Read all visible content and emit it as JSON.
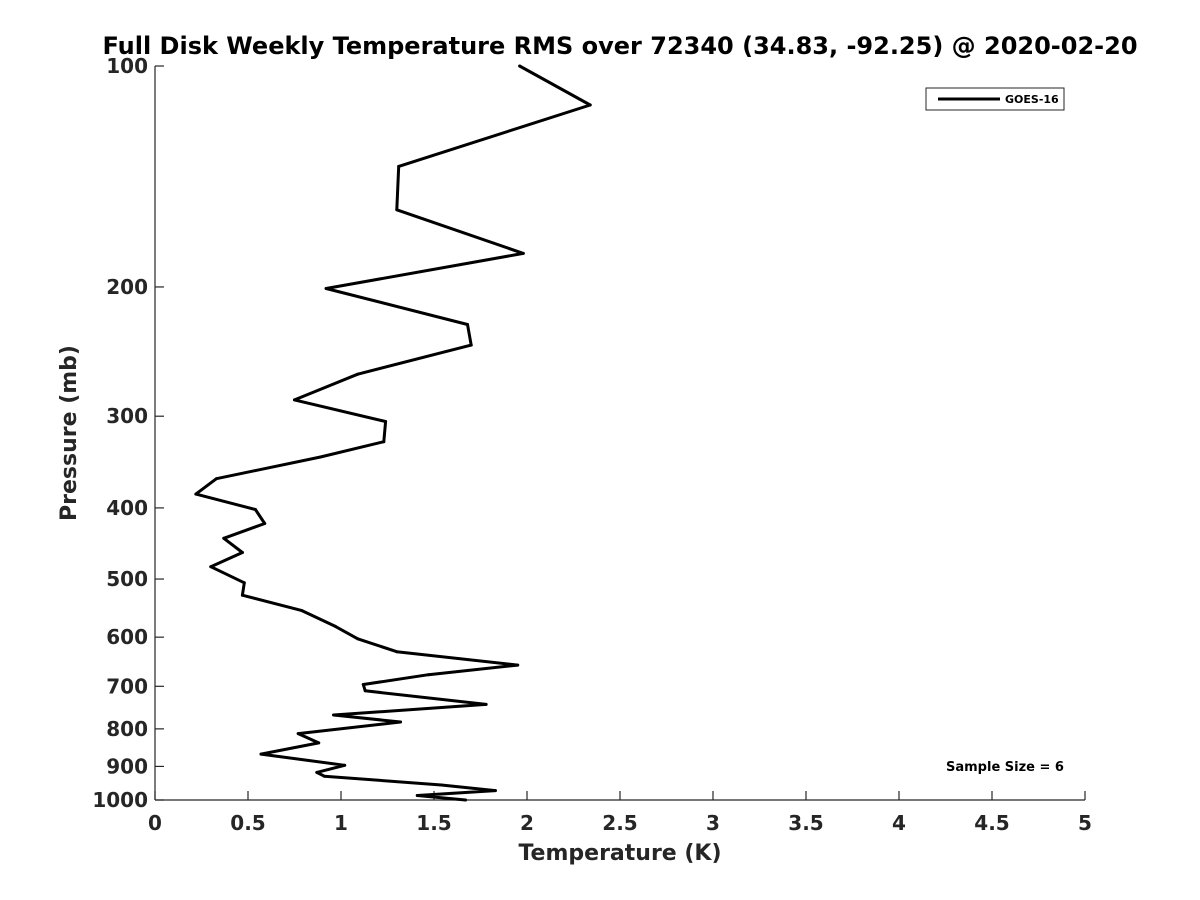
{
  "chart_data": {
    "type": "line",
    "title": "Full Disk Weekly Temperature RMS over 72340 (34.83, -92.25) @ 2020-02-20",
    "xlabel": "Temperature (K)",
    "ylabel": "Pressure (mb)",
    "xlim": [
      0,
      5
    ],
    "ylim": [
      1000,
      100
    ],
    "y_scale": "log",
    "y_direction": "reversed",
    "x_ticks": [
      "0",
      "0.5",
      "1",
      "1.5",
      "2",
      "2.5",
      "3",
      "3.5",
      "4",
      "4.5",
      "5"
    ],
    "y_ticks": [
      "100",
      "200",
      "300",
      "400",
      "500",
      "600",
      "700",
      "800",
      "900",
      "1000"
    ],
    "grid": false,
    "legend_position": "top-right",
    "annotation": "Sample Size = 6",
    "series": [
      {
        "name": "GOES-16",
        "color": "#000000",
        "points": [
          [
            1.96,
            100
          ],
          [
            2.34,
            113
          ],
          [
            1.31,
            137
          ],
          [
            1.3,
            157
          ],
          [
            1.98,
            180
          ],
          [
            0.92,
            201
          ],
          [
            1.68,
            225
          ],
          [
            1.7,
            240
          ],
          [
            1.09,
            263
          ],
          [
            0.75,
            285
          ],
          [
            1.24,
            305
          ],
          [
            1.23,
            325
          ],
          [
            0.89,
            341
          ],
          [
            0.33,
            365
          ],
          [
            0.22,
            383
          ],
          [
            0.54,
            402
          ],
          [
            0.59,
            420
          ],
          [
            0.37,
            440
          ],
          [
            0.47,
            460
          ],
          [
            0.3,
            481
          ],
          [
            0.48,
            506
          ],
          [
            0.47,
            526
          ],
          [
            0.79,
            552
          ],
          [
            0.97,
            580
          ],
          [
            1.09,
            603
          ],
          [
            1.3,
            628
          ],
          [
            1.95,
            655
          ],
          [
            1.47,
            675
          ],
          [
            1.12,
            696
          ],
          [
            1.13,
            710
          ],
          [
            1.78,
            741
          ],
          [
            0.96,
            766
          ],
          [
            1.32,
            783
          ],
          [
            0.77,
            812
          ],
          [
            0.88,
            836
          ],
          [
            0.57,
            866
          ],
          [
            1.02,
            897
          ],
          [
            0.87,
            917
          ],
          [
            0.91,
            928
          ],
          [
            1.54,
            954
          ],
          [
            1.83,
            971
          ],
          [
            1.41,
            986
          ],
          [
            1.67,
            1000
          ]
        ]
      }
    ]
  }
}
